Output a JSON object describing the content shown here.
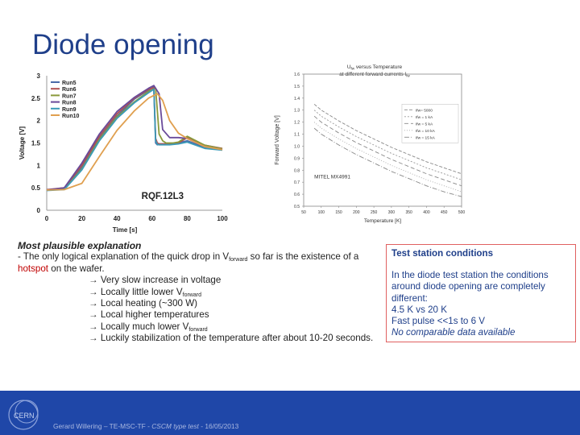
{
  "title": "Diode opening",
  "chart_data": [
    {
      "type": "line",
      "xlabel": "Time [s]",
      "ylabel": "Voltage [V]",
      "xlim": [
        0,
        100
      ],
      "ylim": [
        0,
        3
      ],
      "x_ticks": [
        "0",
        "20",
        "40",
        "60",
        "80",
        "100"
      ],
      "y_ticks": [
        "0",
        "0.5",
        "1",
        "1.5",
        "2",
        "2.5",
        "3"
      ],
      "legend_position": "top-left",
      "annotation": "RQF.12L3",
      "series": [
        {
          "name": "Run5",
          "color": "#4a6aa8",
          "x": [
            0,
            10,
            20,
            30,
            40,
            50,
            58,
            61,
            62,
            63,
            64,
            70,
            75,
            80,
            90,
            100
          ],
          "y": [
            0.45,
            0.48,
            0.95,
            1.6,
            2.1,
            2.48,
            2.68,
            2.75,
            1.5,
            1.46,
            1.48,
            1.48,
            1.5,
            1.55,
            1.4,
            1.36
          ]
        },
        {
          "name": "Run6",
          "color": "#b05050",
          "x": [
            0,
            10,
            20,
            30,
            40,
            50,
            58,
            61,
            62,
            63,
            64,
            70,
            75,
            80,
            90,
            100
          ],
          "y": [
            0.46,
            0.5,
            1.0,
            1.65,
            2.15,
            2.5,
            2.7,
            2.73,
            1.6,
            1.5,
            1.48,
            1.48,
            1.5,
            1.62,
            1.45,
            1.38
          ]
        },
        {
          "name": "Run7",
          "color": "#8a9a3a",
          "x": [
            0,
            10,
            20,
            30,
            40,
            50,
            58,
            62,
            64,
            66,
            68,
            72,
            75,
            80,
            90,
            100
          ],
          "y": [
            0.45,
            0.47,
            0.92,
            1.58,
            2.08,
            2.42,
            2.65,
            2.72,
            1.7,
            1.55,
            1.5,
            1.5,
            1.52,
            1.65,
            1.45,
            1.37
          ]
        },
        {
          "name": "Run8",
          "color": "#6a4a9a",
          "x": [
            0,
            10,
            20,
            30,
            40,
            50,
            58,
            61,
            64,
            66,
            70,
            75,
            80,
            90,
            100
          ],
          "y": [
            0.45,
            0.5,
            1.05,
            1.7,
            2.2,
            2.52,
            2.72,
            2.78,
            2.6,
            1.8,
            1.62,
            1.62,
            1.6,
            1.42,
            1.35
          ]
        },
        {
          "name": "Run9",
          "color": "#3a9ab8",
          "x": [
            0,
            10,
            20,
            30,
            40,
            50,
            58,
            61,
            62,
            63,
            64,
            70,
            75,
            80,
            90,
            100
          ],
          "y": [
            0.44,
            0.46,
            0.9,
            1.55,
            2.05,
            2.4,
            2.62,
            2.7,
            1.55,
            1.47,
            1.46,
            1.46,
            1.48,
            1.52,
            1.38,
            1.34
          ]
        },
        {
          "name": "Run10",
          "color": "#e0a050",
          "x": [
            0,
            10,
            20,
            30,
            40,
            50,
            58,
            63,
            66,
            70,
            75,
            80,
            90,
            100
          ],
          "y": [
            0.45,
            0.46,
            0.6,
            1.2,
            1.78,
            2.22,
            2.5,
            2.6,
            2.45,
            2.0,
            1.72,
            1.6,
            1.42,
            1.35
          ]
        }
      ]
    },
    {
      "type": "line",
      "title_main": "U",
      "title_sub": "fw",
      "title_rest": " versus Temperature",
      "title_line2": "at different forward currents I",
      "title_line2_sub": "fw",
      "xlabel": "Temperature [K]",
      "ylabel": "Forward Voltage [V]",
      "xlim": [
        50,
        500
      ],
      "ylim": [
        0.5,
        1.6
      ],
      "x_ticks": [
        "50",
        "100",
        "150",
        "200",
        "250",
        "300",
        "350",
        "400",
        "450",
        "500"
      ],
      "y_ticks": [
        "0.5",
        "0.6",
        "0.7",
        "0.8",
        "0.9",
        "1.0",
        "1.1",
        "1.2",
        "1.3",
        "1.4",
        "1.5",
        "1.6"
      ],
      "annotation": "MITEL MX4991",
      "legend_position": "right",
      "series": [
        {
          "name": "Ifw= 5000",
          "color": "#888888",
          "dash": "4,2",
          "x": [
            80,
            100,
            150,
            200,
            250,
            300,
            350,
            400,
            450,
            500
          ],
          "y": [
            1.35,
            1.3,
            1.21,
            1.13,
            1.06,
            0.99,
            0.93,
            0.87,
            0.82,
            0.77
          ]
        },
        {
          "name": "Ifw = 1 kA",
          "color": "#999999",
          "dash": "2,2",
          "x": [
            80,
            100,
            150,
            200,
            250,
            300,
            350,
            400,
            450,
            500
          ],
          "y": [
            1.3,
            1.25,
            1.16,
            1.08,
            1.01,
            0.94,
            0.88,
            0.82,
            0.77,
            0.72
          ]
        },
        {
          "name": "Ifw = 5 kA",
          "color": "#888888",
          "dash": "5,3",
          "x": [
            80,
            100,
            150,
            200,
            250,
            300,
            350,
            400,
            450,
            500
          ],
          "y": [
            1.25,
            1.2,
            1.11,
            1.03,
            0.96,
            0.89,
            0.83,
            0.77,
            0.72,
            0.67
          ]
        },
        {
          "name": "Ifw = 10 kA",
          "color": "#aaaaaa",
          "dash": "1,2",
          "x": [
            80,
            100,
            150,
            200,
            250,
            300,
            350,
            400,
            450,
            500
          ],
          "y": [
            1.2,
            1.15,
            1.06,
            0.98,
            0.91,
            0.84,
            0.78,
            0.72,
            0.67,
            0.62
          ]
        },
        {
          "name": "Ifw = 15 kA",
          "color": "#888888",
          "dash": "6,2,1,2",
          "x": [
            80,
            100,
            150,
            200,
            250,
            300,
            350,
            400,
            450,
            500
          ],
          "y": [
            1.15,
            1.1,
            1.01,
            0.93,
            0.86,
            0.79,
            0.73,
            0.67,
            0.62,
            0.58
          ]
        }
      ]
    }
  ],
  "explanation": {
    "heading": "Most plausible explanation",
    "line1_a": "- The only logical explanation of the quick drop in V",
    "line1_sub": "forward",
    "line1_b": " so far is the existence of a",
    "hotspot": "hotspot",
    "line2": " on the wafer.",
    "bullets": [
      {
        "text": "→ Very slow increase in voltage",
        "sub": ""
      },
      {
        "text": "→ Locally little lower V",
        "sub": "forward"
      },
      {
        "text": "→ Local heating (~300 W)",
        "sub": ""
      },
      {
        "text": "→ Local higher temperatures",
        "sub": ""
      },
      {
        "text": "→ Locally much lower V",
        "sub": "forward"
      },
      {
        "text": "→ Luckily stabilization of the temperature after about 10-20 seconds.",
        "sub": ""
      }
    ]
  },
  "test_station": {
    "heading": "Test station conditions",
    "lines": [
      "In the diode test station the conditions",
      "around diode opening are completely",
      "different:",
      "4.5 K vs 20 K",
      "Fast pulse <<1s to 6 V"
    ],
    "italic_line": "No comparable data available"
  },
  "footer": {
    "text_a": "Gerard Willering – TE-MSC-TF - ",
    "text_b": "CSCM type test",
    "text_c": " - 16/05/2013",
    "logo_text": "CERN"
  }
}
